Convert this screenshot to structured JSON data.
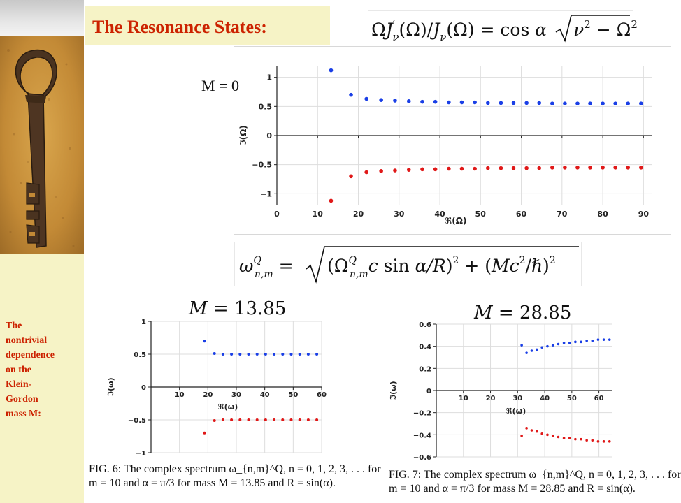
{
  "slide": {
    "title": "The Resonance States:",
    "sidebar_caption": [
      "The",
      "nontrivial",
      "dependence",
      "on the",
      "Klein-",
      "Gordon",
      "mass M:"
    ],
    "sidebar_image": "rusty-key-on-sand",
    "formula_1": "ΩJ′ν(Ω)/Jν(Ω) = cos α √(ν² − Ω²)",
    "formula_2": "ω_{n,m}^Q = √((Ω_{n,m}^Q c sin α/R)² + (Mc²/ℏ)²)",
    "formula_3": "M = 13.85",
    "formula_4": "M = 28.85",
    "m0_label": "M = 0",
    "caption_fig6": [
      "FIG. 6: The complex spectrum ω_{n,m}^Q, n = 0, 1, 2, 3, . . . for",
      "m = 10 and α = π/3 for mass M = 13.85 and R = sin(α)."
    ],
    "caption_fig7": [
      "FIG. 7: The complex spectrum ω_{n,m}^Q, n = 0, 1, 2, 3, . . . for",
      "m = 10 and α = π/3 for mass M = 28.85 and R = sin(α)."
    ]
  },
  "colors": {
    "accent": "#cc2200",
    "series_upper": "#1a3fe6",
    "series_lower": "#e01818",
    "grid": "#dddddd"
  },
  "chart_data": [
    {
      "type": "scatter",
      "id": "main",
      "xlabel": "ℜ(Ω)",
      "ylabel": "ℑ(Ω)",
      "xlim": [
        0,
        92
      ],
      "ylim": [
        -1.2,
        1.2
      ],
      "xticks": [
        0,
        10,
        20,
        30,
        40,
        50,
        60,
        70,
        80,
        90
      ],
      "yticks": [
        -1,
        -0.5,
        0,
        0.5,
        1
      ],
      "ytick_labels": [
        "−1",
        "−0.5",
        "0",
        "0.5",
        "1"
      ],
      "grid": true,
      "series": [
        {
          "color": "upper",
          "x": [
            13.3,
            18.2,
            22.0,
            25.6,
            29.0,
            32.4,
            35.7,
            38.9,
            42.2,
            45.4,
            48.6,
            51.8,
            55.0,
            58.1,
            61.3,
            64.4,
            67.6,
            70.7,
            73.8,
            76.9,
            80.0,
            83.1,
            86.2,
            89.4
          ],
          "y": [
            1.12,
            0.7,
            0.63,
            0.61,
            0.6,
            0.59,
            0.58,
            0.58,
            0.57,
            0.57,
            0.57,
            0.56,
            0.56,
            0.56,
            0.56,
            0.56,
            0.55,
            0.55,
            0.55,
            0.55,
            0.55,
            0.55,
            0.55,
            0.55
          ]
        },
        {
          "color": "lower",
          "x": [
            13.3,
            18.2,
            22.0,
            25.6,
            29.0,
            32.4,
            35.7,
            38.9,
            42.2,
            45.4,
            48.6,
            51.8,
            55.0,
            58.1,
            61.3,
            64.4,
            67.6,
            70.7,
            73.8,
            76.9,
            80.0,
            83.1,
            86.2,
            89.4
          ],
          "y": [
            -1.12,
            -0.7,
            -0.63,
            -0.61,
            -0.6,
            -0.59,
            -0.58,
            -0.58,
            -0.57,
            -0.57,
            -0.57,
            -0.56,
            -0.56,
            -0.56,
            -0.56,
            -0.56,
            -0.55,
            -0.55,
            -0.55,
            -0.55,
            -0.55,
            -0.55,
            -0.55,
            -0.55
          ]
        }
      ]
    },
    {
      "type": "scatter",
      "id": "fig6",
      "xlabel": "ℜ(ω)",
      "ylabel": "ℑ(ω)",
      "xlim": [
        0,
        60
      ],
      "ylim": [
        -1,
        1
      ],
      "xticks": [
        10,
        20,
        30,
        40,
        50,
        60
      ],
      "yticks": [
        -1,
        -0.5,
        0,
        0.5,
        1
      ],
      "ytick_labels": [
        "−1",
        "−0.5",
        "0",
        "0.5",
        "1"
      ],
      "grid": true,
      "series": [
        {
          "color": "upper",
          "x": [
            18.8,
            22.3,
            25.3,
            28.3,
            31.3,
            34.3,
            37.3,
            40.3,
            43.3,
            46.3,
            49.3,
            52.3,
            55.3,
            58.3
          ],
          "y": [
            0.7,
            0.51,
            0.5,
            0.5,
            0.5,
            0.5,
            0.5,
            0.5,
            0.5,
            0.5,
            0.5,
            0.5,
            0.5,
            0.5
          ]
        },
        {
          "color": "lower",
          "x": [
            18.8,
            22.3,
            25.3,
            28.3,
            31.3,
            34.3,
            37.3,
            40.3,
            43.3,
            46.3,
            49.3,
            52.3,
            55.3,
            58.3
          ],
          "y": [
            -0.7,
            -0.51,
            -0.5,
            -0.5,
            -0.5,
            -0.5,
            -0.5,
            -0.5,
            -0.5,
            -0.5,
            -0.5,
            -0.5,
            -0.5,
            -0.5
          ]
        }
      ]
    },
    {
      "type": "scatter",
      "id": "fig7",
      "xlabel": "ℜ(ω)",
      "ylabel": "ℑ(ω)",
      "xlim": [
        0,
        65
      ],
      "ylim": [
        -0.6,
        0.6
      ],
      "xticks": [
        10,
        20,
        30,
        40,
        50,
        60
      ],
      "yticks": [
        -0.6,
        -0.4,
        -0.2,
        0,
        0.2,
        0.4,
        0.6
      ],
      "ytick_labels": [
        "−0.6",
        "−0.4",
        "−0.2",
        "0",
        "0.2",
        "0.4",
        "0.6"
      ],
      "grid": true,
      "series": [
        {
          "color": "upper",
          "x": [
            31.5,
            33.3,
            35.2,
            37.1,
            39.0,
            41.0,
            43.0,
            45.0,
            47.1,
            49.2,
            51.3,
            53.4,
            55.5,
            57.6,
            59.7,
            61.8,
            63.9
          ],
          "y": [
            0.41,
            0.34,
            0.36,
            0.37,
            0.39,
            0.4,
            0.41,
            0.42,
            0.43,
            0.43,
            0.44,
            0.44,
            0.45,
            0.45,
            0.46,
            0.46,
            0.46
          ]
        },
        {
          "color": "lower",
          "x": [
            31.5,
            33.3,
            35.2,
            37.1,
            39.0,
            41.0,
            43.0,
            45.0,
            47.1,
            49.2,
            51.3,
            53.4,
            55.5,
            57.6,
            59.7,
            61.8,
            63.9
          ],
          "y": [
            -0.41,
            -0.34,
            -0.36,
            -0.37,
            -0.39,
            -0.4,
            -0.41,
            -0.42,
            -0.43,
            -0.43,
            -0.44,
            -0.44,
            -0.45,
            -0.45,
            -0.46,
            -0.46,
            -0.46
          ]
        }
      ]
    }
  ]
}
